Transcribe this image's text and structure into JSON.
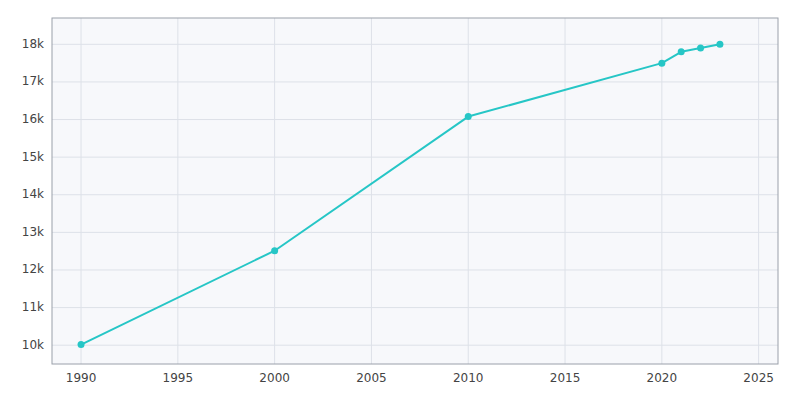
{
  "chart_data": {
    "type": "line",
    "x": [
      1990,
      2000,
      2010,
      2020,
      2021,
      2022,
      2023
    ],
    "values": [
      10016,
      12512,
      16079,
      17500,
      17800,
      17900,
      18000
    ],
    "color": "#26c6c6",
    "marker": "circle",
    "xlim": [
      1988.5,
      2026
    ],
    "ylim": [
      9500,
      18700
    ],
    "xticks": [
      1990,
      1995,
      2000,
      2005,
      2010,
      2015,
      2020,
      2025
    ],
    "yticks": [
      {
        "value": 10000,
        "label": "10k"
      },
      {
        "value": 11000,
        "label": "11k"
      },
      {
        "value": 12000,
        "label": "12k"
      },
      {
        "value": 13000,
        "label": "13k"
      },
      {
        "value": 14000,
        "label": "14k"
      },
      {
        "value": 15000,
        "label": "15k"
      },
      {
        "value": 16000,
        "label": "16k"
      },
      {
        "value": 17000,
        "label": "17k"
      },
      {
        "value": 18000,
        "label": "18k"
      }
    ],
    "grid": true
  }
}
